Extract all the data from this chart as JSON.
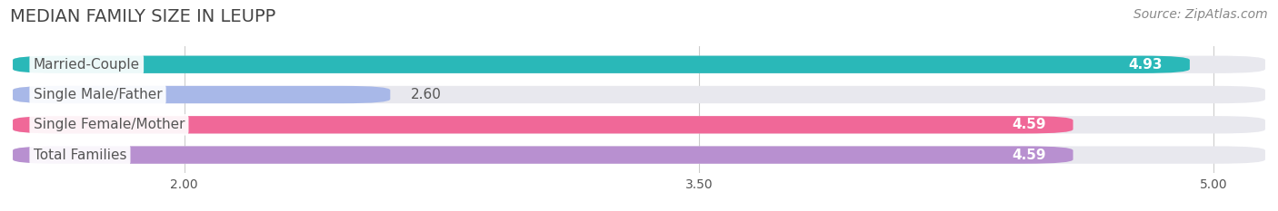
{
  "title": "MEDIAN FAMILY SIZE IN LEUPP",
  "source": "Source: ZipAtlas.com",
  "categories": [
    "Married-Couple",
    "Single Male/Father",
    "Single Female/Mother",
    "Total Families"
  ],
  "values": [
    4.93,
    2.6,
    4.59,
    4.59
  ],
  "bar_colors": [
    "#2ab8b8",
    "#a8b8e8",
    "#f06898",
    "#b890d0"
  ],
  "bar_bg_color": "#e8e8ee",
  "value_label_inside_color": "white",
  "value_label_outside_color": "#555555",
  "value_label_outside": [
    false,
    true,
    false,
    false
  ],
  "label_text_color": "#555555",
  "xlim_left": 1.5,
  "xlim_right": 5.15,
  "xmin": 1.5,
  "xticks": [
    2.0,
    3.5,
    5.0
  ],
  "title_fontsize": 14,
  "source_fontsize": 10,
  "bar_label_fontsize": 11,
  "value_fontsize": 11,
  "bar_height": 0.58,
  "background_color": "#ffffff"
}
